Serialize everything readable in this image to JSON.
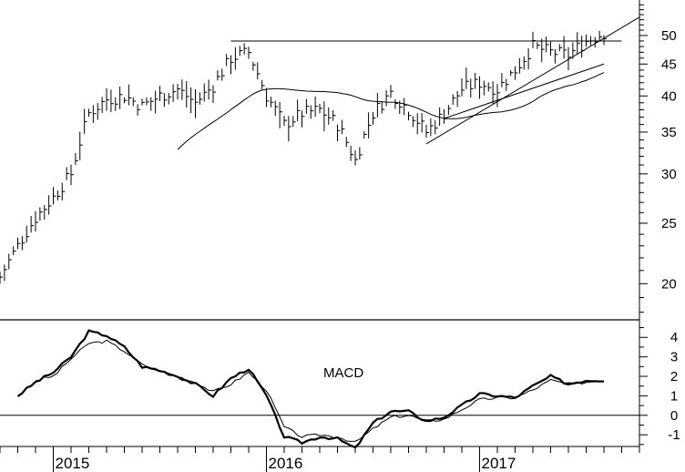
{
  "chart_data": [
    {
      "type": "ohlc",
      "scale": "log",
      "ylim": [
        17.5,
        57
      ],
      "y_ticks": [
        20,
        25,
        30,
        35,
        40,
        45,
        50
      ],
      "x_years": [
        "2015",
        "2016",
        "2017"
      ],
      "x_range": [
        "2014-10",
        "2017-10"
      ],
      "overlays": [
        {
          "kind": "moving-average"
        },
        {
          "kind": "horizontal-line",
          "value": 49.0
        },
        {
          "kind": "trendline"
        },
        {
          "kind": "trendline"
        }
      ],
      "price_path": [
        [
          "2014-10",
          20.5
        ],
        [
          "2014-11",
          23.0
        ],
        [
          "2014-12",
          25.5
        ],
        [
          "2015-01",
          27.5
        ],
        [
          "2015-02",
          30.0
        ],
        [
          "2015-03",
          37.5
        ],
        [
          "2015-04",
          39.5
        ],
        [
          "2015-05",
          40.0
        ],
        [
          "2015-06",
          38.5
        ],
        [
          "2015-07",
          40.0
        ],
        [
          "2015-08",
          41.0
        ],
        [
          "2015-09",
          39.0
        ],
        [
          "2015-10",
          41.5
        ],
        [
          "2015-11",
          46.0
        ],
        [
          "2015-12",
          47.0
        ],
        [
          "2016-01",
          40.0
        ],
        [
          "2016-02",
          36.0
        ],
        [
          "2016-03",
          37.5
        ],
        [
          "2016-04",
          38.0
        ],
        [
          "2016-05",
          36.0
        ],
        [
          "2016-06",
          31.5
        ],
        [
          "2016-07",
          37.5
        ],
        [
          "2016-08",
          40.5
        ],
        [
          "2016-09",
          38.0
        ],
        [
          "2016-10",
          35.0
        ],
        [
          "2016-11",
          37.5
        ],
        [
          "2016-12",
          41.0
        ],
        [
          "2017-01",
          42.0
        ],
        [
          "2017-02",
          41.0
        ],
        [
          "2017-03",
          44.0
        ],
        [
          "2017-04",
          48.0
        ],
        [
          "2017-05",
          47.0
        ],
        [
          "2017-06",
          46.5
        ],
        [
          "2017-07",
          49.0
        ],
        [
          "2017-08",
          50.5
        ]
      ]
    },
    {
      "type": "line",
      "title": "MACD",
      "ylim": [
        -1.6,
        4.9
      ],
      "y_ticks": [
        -1,
        0,
        1,
        2,
        3,
        4
      ],
      "macd_path": [
        [
          "2014-11",
          1.0
        ],
        [
          "2014-12",
          1.7
        ],
        [
          "2015-01",
          2.2
        ],
        [
          "2015-02",
          3.0
        ],
        [
          "2015-03",
          4.3
        ],
        [
          "2015-04",
          4.1
        ],
        [
          "2015-05",
          3.5
        ],
        [
          "2015-06",
          2.5
        ],
        [
          "2015-07",
          2.3
        ],
        [
          "2015-08",
          2.0
        ],
        [
          "2015-09",
          1.6
        ],
        [
          "2015-10",
          1.0
        ],
        [
          "2015-11",
          1.9
        ],
        [
          "2015-12",
          2.4
        ],
        [
          "2016-01",
          1.0
        ],
        [
          "2016-02",
          -1.1
        ],
        [
          "2016-03",
          -1.4
        ],
        [
          "2016-04",
          -1.1
        ],
        [
          "2016-05",
          -1.2
        ],
        [
          "2016-06",
          -1.7
        ],
        [
          "2016-07",
          -0.4
        ],
        [
          "2016-08",
          0.2
        ],
        [
          "2016-09",
          0.2
        ],
        [
          "2016-10",
          -0.3
        ],
        [
          "2016-11",
          -0.1
        ],
        [
          "2016-12",
          0.5
        ],
        [
          "2017-01",
          1.1
        ],
        [
          "2017-02",
          1.0
        ],
        [
          "2017-03",
          0.9
        ],
        [
          "2017-04",
          1.5
        ],
        [
          "2017-05",
          2.0
        ],
        [
          "2017-06",
          1.6
        ],
        [
          "2017-07",
          1.8
        ],
        [
          "2017-08",
          1.8
        ]
      ],
      "signal_path": [
        [
          "2014-12",
          1.8
        ],
        [
          "2015-01",
          2.0
        ],
        [
          "2015-02",
          2.9
        ],
        [
          "2015-03",
          3.7
        ],
        [
          "2015-04",
          3.8
        ],
        [
          "2015-05",
          3.3
        ],
        [
          "2015-06",
          2.6
        ],
        [
          "2015-07",
          2.3
        ],
        [
          "2015-08",
          2.0
        ],
        [
          "2015-09",
          1.7
        ],
        [
          "2015-10",
          1.2
        ],
        [
          "2015-11",
          1.6
        ],
        [
          "2015-12",
          2.2
        ],
        [
          "2016-01",
          1.3
        ],
        [
          "2016-02",
          -0.6
        ],
        [
          "2016-03",
          -1.1
        ],
        [
          "2016-04",
          -1.0
        ],
        [
          "2016-05",
          -1.1
        ],
        [
          "2016-06",
          -1.4
        ],
        [
          "2016-07",
          -0.7
        ],
        [
          "2016-08",
          -0.1
        ],
        [
          "2016-09",
          0.0
        ],
        [
          "2016-10",
          -0.3
        ],
        [
          "2016-11",
          -0.2
        ],
        [
          "2016-12",
          0.3
        ],
        [
          "2017-01",
          0.8
        ],
        [
          "2017-02",
          0.9
        ],
        [
          "2017-03",
          0.9
        ],
        [
          "2017-04",
          1.3
        ],
        [
          "2017-05",
          1.8
        ],
        [
          "2017-06",
          1.6
        ],
        [
          "2017-07",
          1.7
        ],
        [
          "2017-08",
          1.8
        ]
      ]
    }
  ]
}
